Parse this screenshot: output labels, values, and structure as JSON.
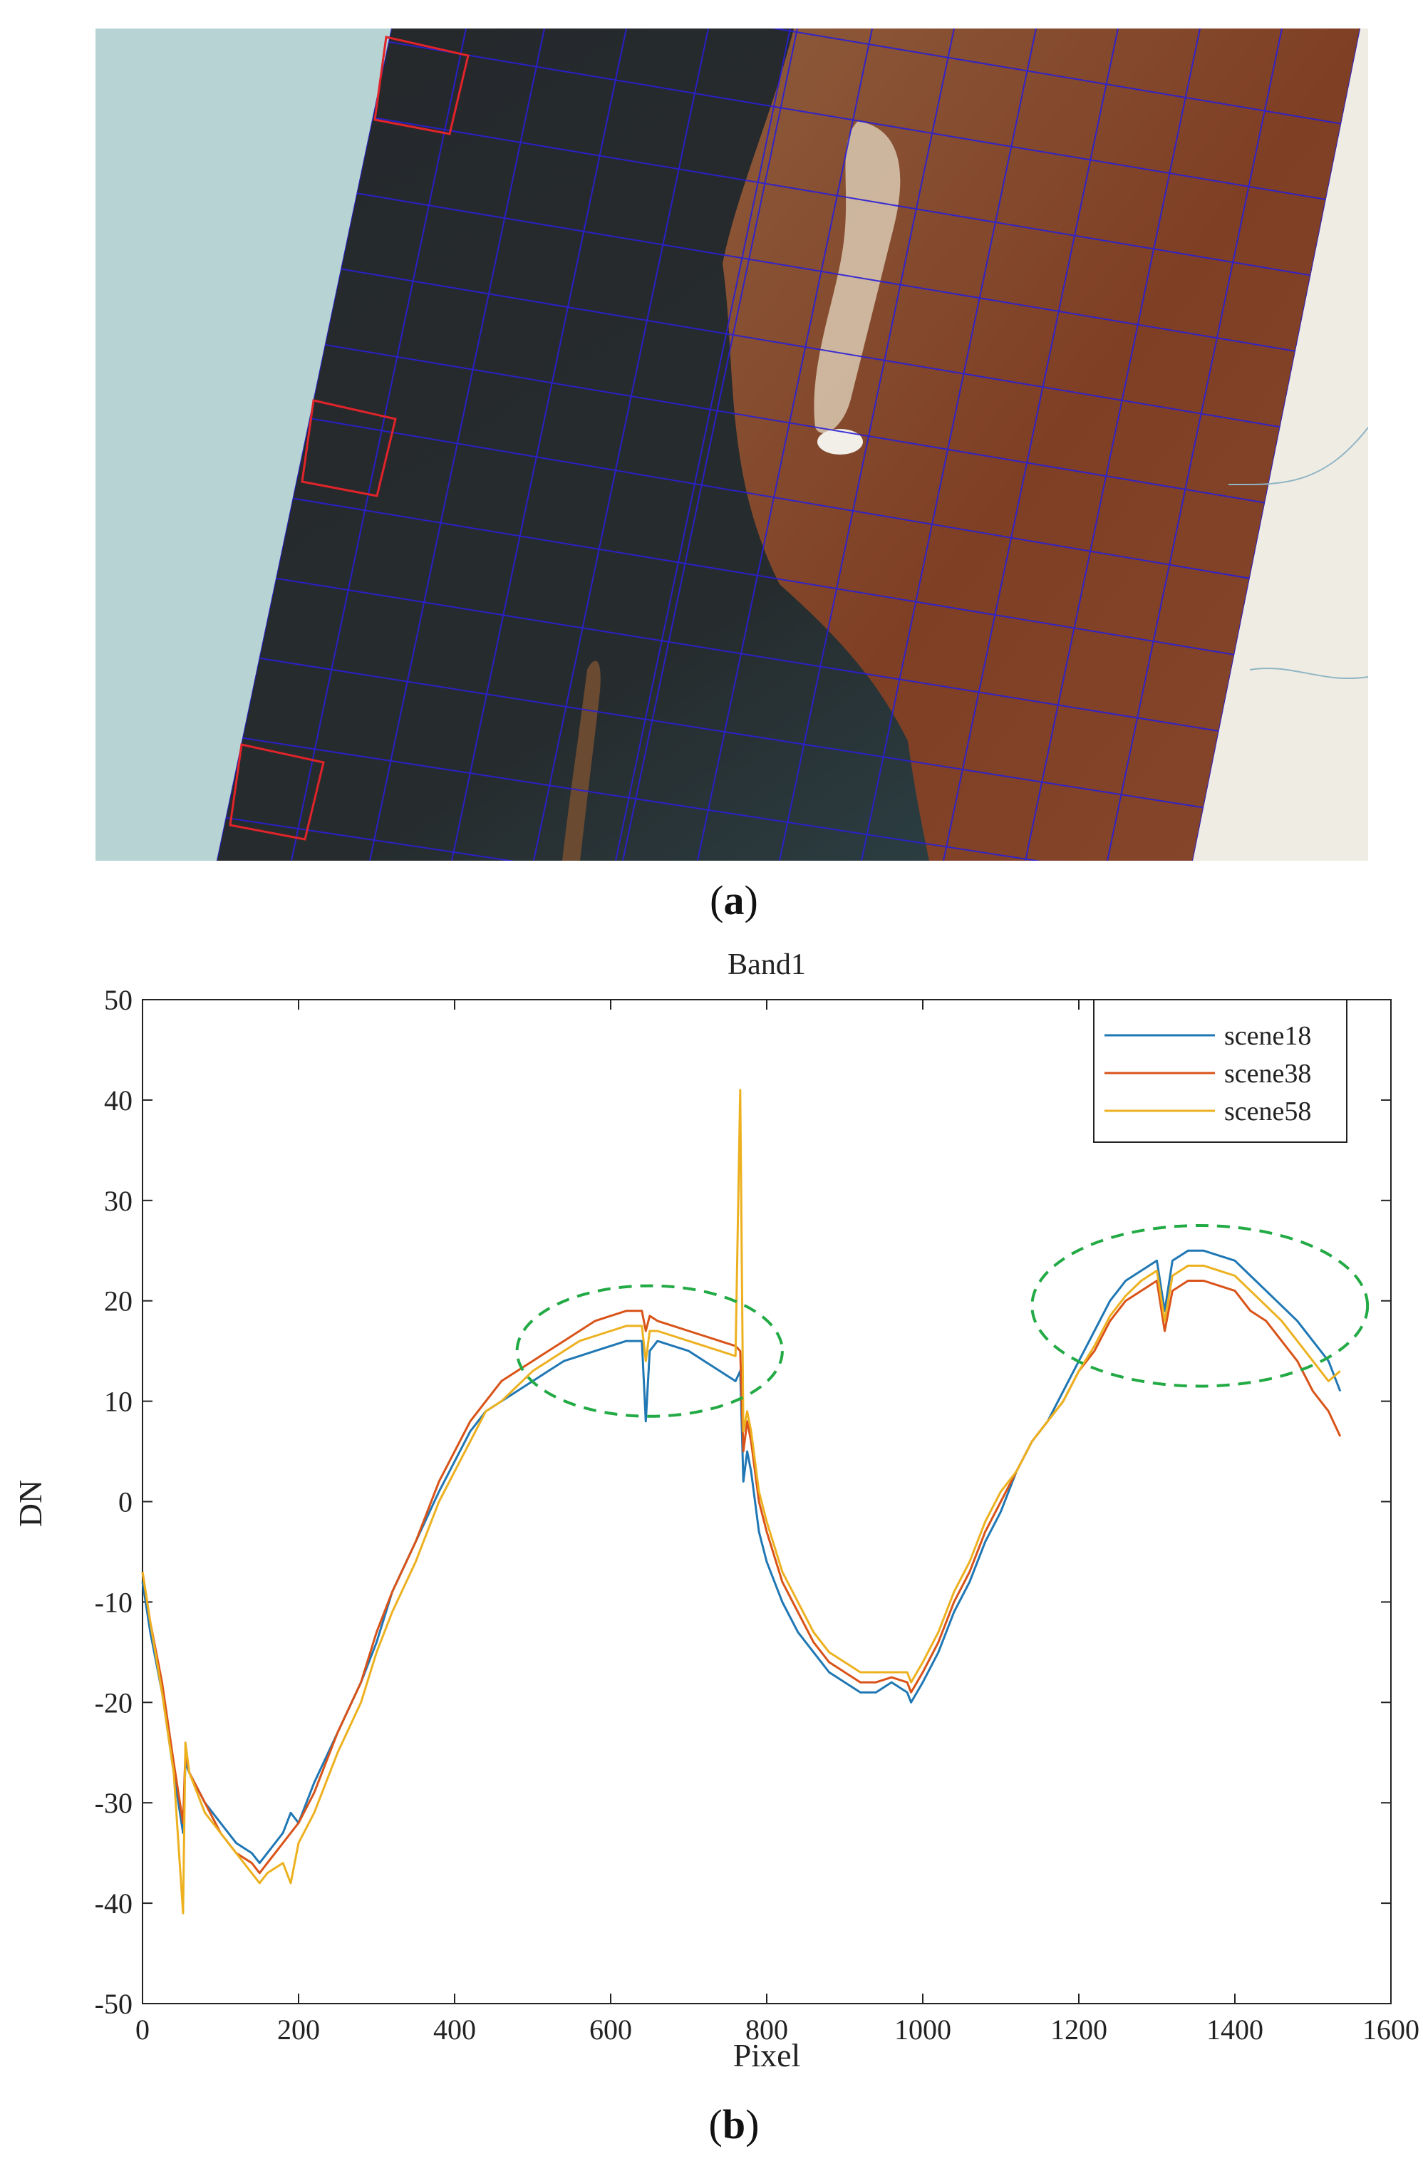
{
  "panels": {
    "a": {
      "label": "a",
      "open": "(",
      "close": ")"
    },
    "b": {
      "label": "b",
      "open": "(",
      "close": ")"
    }
  },
  "colors": {
    "sea_outside": "#b7d3d4",
    "land_outside": "#efece4",
    "swath_ocean": "#23262a",
    "land": "#8a4a2c",
    "grid": "#2b1fd6",
    "highlight_boxes": "#e0242a",
    "scene18": "#1f77b4",
    "scene38": "#d95319",
    "scene58": "#edb120",
    "ellipse": "#22aa44"
  },
  "chart_data": {
    "type": "line",
    "title": "Band1",
    "xlabel": "Pixel",
    "ylabel": "DN",
    "xlim": [
      0,
      1600
    ],
    "ylim": [
      -50,
      50
    ],
    "xticks": [
      0,
      200,
      400,
      600,
      800,
      1000,
      1200,
      1400,
      1600
    ],
    "yticks": [
      -50,
      -40,
      -30,
      -20,
      -10,
      0,
      10,
      20,
      30,
      40,
      50
    ],
    "legend_position": "top-right",
    "grid": false,
    "series": [
      {
        "name": "scene18",
        "x": [
          0,
          10,
          25,
          40,
          52,
          55,
          60,
          80,
          100,
          120,
          140,
          150,
          160,
          180,
          190,
          200,
          220,
          250,
          280,
          300,
          320,
          350,
          380,
          400,
          420,
          440,
          460,
          480,
          500,
          520,
          540,
          560,
          580,
          600,
          620,
          640,
          645,
          650,
          660,
          680,
          700,
          720,
          740,
          760,
          766,
          770,
          775,
          780,
          790,
          800,
          820,
          840,
          860,
          880,
          900,
          920,
          940,
          960,
          980,
          985,
          1000,
          1020,
          1040,
          1060,
          1080,
          1100,
          1120,
          1140,
          1160,
          1180,
          1200,
          1220,
          1240,
          1260,
          1280,
          1300,
          1310,
          1320,
          1340,
          1360,
          1380,
          1400,
          1420,
          1440,
          1460,
          1480,
          1500,
          1520,
          1535
        ],
        "y": [
          -8,
          -13,
          -19,
          -27,
          -33,
          -26,
          -27,
          -30,
          -32,
          -34,
          -35,
          -36,
          -35,
          -33,
          -31,
          -32,
          -28,
          -23,
          -18,
          -14,
          -9,
          -4,
          1,
          4,
          7,
          9,
          10,
          11,
          12,
          13,
          14,
          14.5,
          15,
          15.5,
          16,
          16,
          8,
          15,
          16,
          15.5,
          15,
          14,
          13,
          12,
          13,
          2,
          5,
          3,
          -3,
          -6,
          -10,
          -13,
          -15,
          -17,
          -18,
          -19,
          -19,
          -18,
          -19,
          -20,
          -18,
          -15,
          -11,
          -8,
          -4,
          -1,
          3,
          6,
          8,
          11,
          14,
          17,
          20,
          22,
          23,
          24,
          19,
          24,
          25,
          25,
          24.5,
          24,
          22.5,
          21,
          19.5,
          18,
          16,
          14,
          11
        ]
      },
      {
        "name": "scene38",
        "x": [
          0,
          10,
          25,
          40,
          52,
          55,
          60,
          80,
          100,
          120,
          140,
          150,
          160,
          180,
          190,
          200,
          220,
          250,
          280,
          300,
          320,
          350,
          380,
          400,
          420,
          440,
          460,
          480,
          500,
          520,
          540,
          560,
          580,
          600,
          620,
          640,
          645,
          650,
          660,
          680,
          700,
          720,
          740,
          760,
          766,
          770,
          775,
          780,
          790,
          800,
          820,
          840,
          860,
          880,
          900,
          920,
          940,
          960,
          980,
          985,
          1000,
          1020,
          1040,
          1060,
          1080,
          1100,
          1120,
          1140,
          1160,
          1180,
          1200,
          1220,
          1240,
          1260,
          1280,
          1300,
          1310,
          1320,
          1340,
          1360,
          1380,
          1400,
          1420,
          1440,
          1460,
          1480,
          1500,
          1520,
          1535
        ],
        "y": [
          -7,
          -12,
          -18,
          -26,
          -32,
          -25,
          -27,
          -30,
          -33,
          -35,
          -36,
          -37,
          -36,
          -34,
          -33,
          -32,
          -29,
          -23,
          -18,
          -13,
          -9,
          -4,
          2,
          5,
          8,
          10,
          12,
          13,
          14,
          15,
          16,
          17,
          18,
          18.5,
          19,
          19,
          17,
          18.5,
          18,
          17.5,
          17,
          16.5,
          16,
          15.5,
          15,
          5,
          8,
          6,
          0,
          -3,
          -8,
          -11,
          -14,
          -16,
          -17,
          -18,
          -18,
          -17.5,
          -18,
          -19,
          -17,
          -14,
          -10,
          -7,
          -3,
          0,
          3,
          6,
          8,
          10,
          13,
          15,
          18,
          20,
          21,
          22,
          17,
          21,
          22,
          22,
          21.5,
          21,
          19,
          18,
          16,
          14,
          11,
          9,
          6.5
        ]
      },
      {
        "name": "scene58",
        "x": [
          0,
          10,
          25,
          40,
          52,
          55,
          60,
          80,
          100,
          120,
          140,
          150,
          160,
          180,
          190,
          200,
          220,
          250,
          280,
          300,
          320,
          350,
          380,
          400,
          420,
          440,
          460,
          480,
          500,
          520,
          540,
          560,
          580,
          600,
          620,
          640,
          645,
          650,
          660,
          680,
          700,
          720,
          740,
          760,
          766,
          770,
          775,
          780,
          790,
          800,
          820,
          840,
          860,
          880,
          900,
          920,
          940,
          960,
          980,
          985,
          1000,
          1020,
          1040,
          1060,
          1080,
          1100,
          1120,
          1140,
          1160,
          1180,
          1200,
          1220,
          1240,
          1260,
          1280,
          1300,
          1310,
          1320,
          1340,
          1360,
          1380,
          1400,
          1420,
          1440,
          1460,
          1480,
          1500,
          1520,
          1535
        ],
        "y": [
          -7,
          -12,
          -19,
          -27,
          -41,
          -24,
          -27,
          -31,
          -33,
          -35,
          -37,
          -38,
          -37,
          -36,
          -38,
          -34,
          -31,
          -25,
          -20,
          -15,
          -11,
          -6,
          0,
          3,
          6,
          9,
          10,
          11.5,
          13,
          14,
          15,
          16,
          16.5,
          17,
          17.5,
          17.5,
          14,
          17,
          17,
          16.5,
          16,
          15.5,
          15,
          14.5,
          41,
          7,
          9,
          7,
          1,
          -2,
          -7,
          -10,
          -13,
          -15,
          -16,
          -17,
          -17,
          -17,
          -17,
          -18,
          -16,
          -13,
          -9,
          -6,
          -2,
          1,
          3,
          6,
          8,
          10,
          13,
          15.5,
          18.5,
          20.5,
          22,
          23,
          18,
          22.5,
          23.5,
          23.5,
          23,
          22.5,
          21,
          19.5,
          18,
          16,
          14,
          12,
          13
        ]
      }
    ],
    "annotations": [
      {
        "shape": "dashed-ellipse",
        "center": [
          650,
          15
        ],
        "radius_x": 170,
        "radius_y": 6.5
      },
      {
        "shape": "dashed-ellipse",
        "center": [
          1355,
          19.5
        ],
        "radius_x": 215,
        "radius_y": 8
      }
    ]
  }
}
